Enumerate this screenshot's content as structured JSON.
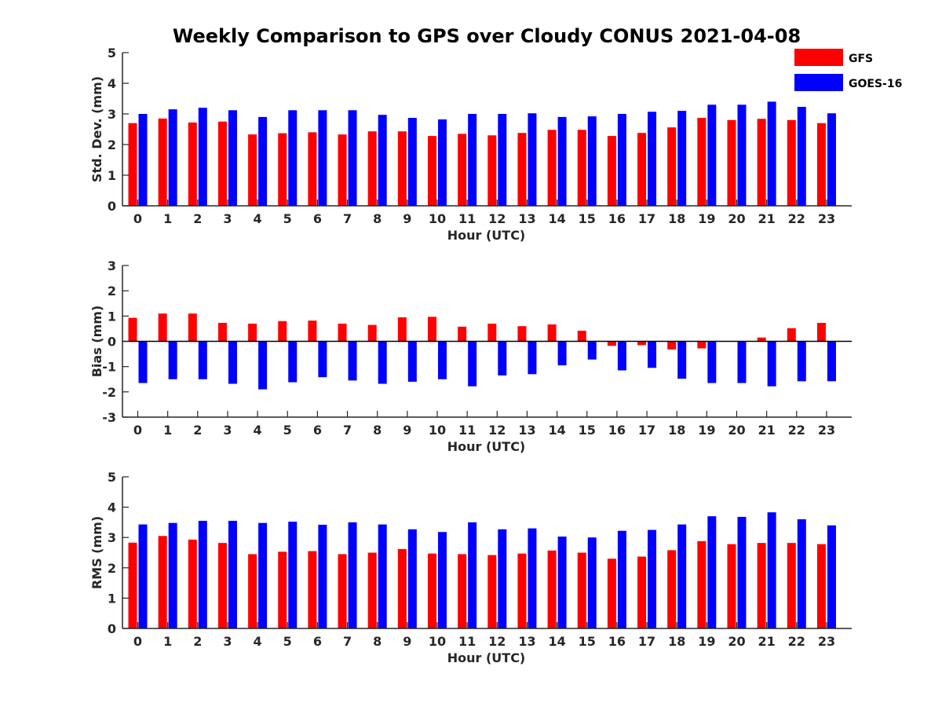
{
  "title": "Weekly Comparison to GPS over Cloudy CONUS 2021-04-08",
  "colors": {
    "GFS": "#ff0000",
    "GOES-16": "#0000ff"
  },
  "legend": {
    "position": "top-right",
    "entries": [
      "GFS",
      "GOES-16"
    ]
  },
  "chart_data": [
    {
      "type": "bar",
      "xlabel": "Hour (UTC)",
      "ylabel": "Std. Dev. (mm)",
      "ylim": [
        0,
        5
      ],
      "yticks": [
        0,
        1,
        2,
        3,
        4,
        5
      ],
      "categories": [
        "0",
        "1",
        "2",
        "3",
        "4",
        "5",
        "6",
        "7",
        "8",
        "9",
        "10",
        "11",
        "12",
        "13",
        "14",
        "15",
        "16",
        "17",
        "18",
        "19",
        "20",
        "21",
        "22",
        "23"
      ],
      "series": [
        {
          "name": "GFS",
          "values": [
            2.7,
            2.85,
            2.72,
            2.75,
            2.33,
            2.37,
            2.4,
            2.33,
            2.43,
            2.43,
            2.28,
            2.35,
            2.3,
            2.38,
            2.48,
            2.48,
            2.28,
            2.38,
            2.56,
            2.87,
            2.8,
            2.84,
            2.8,
            2.7
          ]
        },
        {
          "name": "GOES-16",
          "values": [
            3.0,
            3.15,
            3.2,
            3.12,
            2.9,
            3.12,
            3.12,
            3.12,
            2.97,
            2.87,
            2.82,
            3.0,
            3.0,
            3.02,
            2.9,
            2.92,
            3.0,
            3.07,
            3.1,
            3.3,
            3.3,
            3.4,
            3.23,
            3.02
          ]
        }
      ]
    },
    {
      "type": "bar",
      "xlabel": "Hour (UTC)",
      "ylabel": "Bias (mm)",
      "ylim": [
        -3,
        3
      ],
      "yticks": [
        -3,
        -2,
        -1,
        0,
        1,
        2,
        3
      ],
      "categories": [
        "0",
        "1",
        "2",
        "3",
        "4",
        "5",
        "6",
        "7",
        "8",
        "9",
        "10",
        "11",
        "12",
        "13",
        "14",
        "15",
        "16",
        "17",
        "18",
        "19",
        "20",
        "21",
        "22",
        "23"
      ],
      "series": [
        {
          "name": "GFS",
          "values": [
            0.93,
            1.1,
            1.1,
            0.73,
            0.7,
            0.8,
            0.82,
            0.7,
            0.65,
            0.95,
            0.97,
            0.58,
            0.7,
            0.6,
            0.67,
            0.42,
            -0.18,
            -0.15,
            -0.32,
            -0.28,
            0.0,
            0.15,
            0.52,
            0.73
          ]
        },
        {
          "name": "GOES-16",
          "values": [
            -1.65,
            -1.5,
            -1.5,
            -1.68,
            -1.9,
            -1.62,
            -1.42,
            -1.55,
            -1.68,
            -1.6,
            -1.5,
            -1.78,
            -1.35,
            -1.3,
            -0.95,
            -0.72,
            -1.15,
            -1.05,
            -1.48,
            -1.65,
            -1.65,
            -1.78,
            -1.58,
            -1.58
          ]
        }
      ]
    },
    {
      "type": "bar",
      "xlabel": "Hour (UTC)",
      "ylabel": "RMS (mm)",
      "ylim": [
        0,
        5
      ],
      "yticks": [
        0,
        1,
        2,
        3,
        4,
        5
      ],
      "categories": [
        "0",
        "1",
        "2",
        "3",
        "4",
        "5",
        "6",
        "7",
        "8",
        "9",
        "10",
        "11",
        "12",
        "13",
        "14",
        "15",
        "16",
        "17",
        "18",
        "19",
        "20",
        "21",
        "22",
        "23"
      ],
      "series": [
        {
          "name": "GFS",
          "values": [
            2.83,
            3.05,
            2.93,
            2.82,
            2.45,
            2.53,
            2.55,
            2.45,
            2.5,
            2.62,
            2.47,
            2.45,
            2.42,
            2.47,
            2.57,
            2.5,
            2.3,
            2.37,
            2.58,
            2.88,
            2.78,
            2.82,
            2.82,
            2.78
          ]
        },
        {
          "name": "GOES-16",
          "values": [
            3.43,
            3.48,
            3.55,
            3.55,
            3.48,
            3.52,
            3.42,
            3.5,
            3.43,
            3.27,
            3.18,
            3.5,
            3.27,
            3.3,
            3.03,
            3.0,
            3.22,
            3.25,
            3.43,
            3.7,
            3.68,
            3.83,
            3.6,
            3.4
          ]
        }
      ]
    }
  ]
}
